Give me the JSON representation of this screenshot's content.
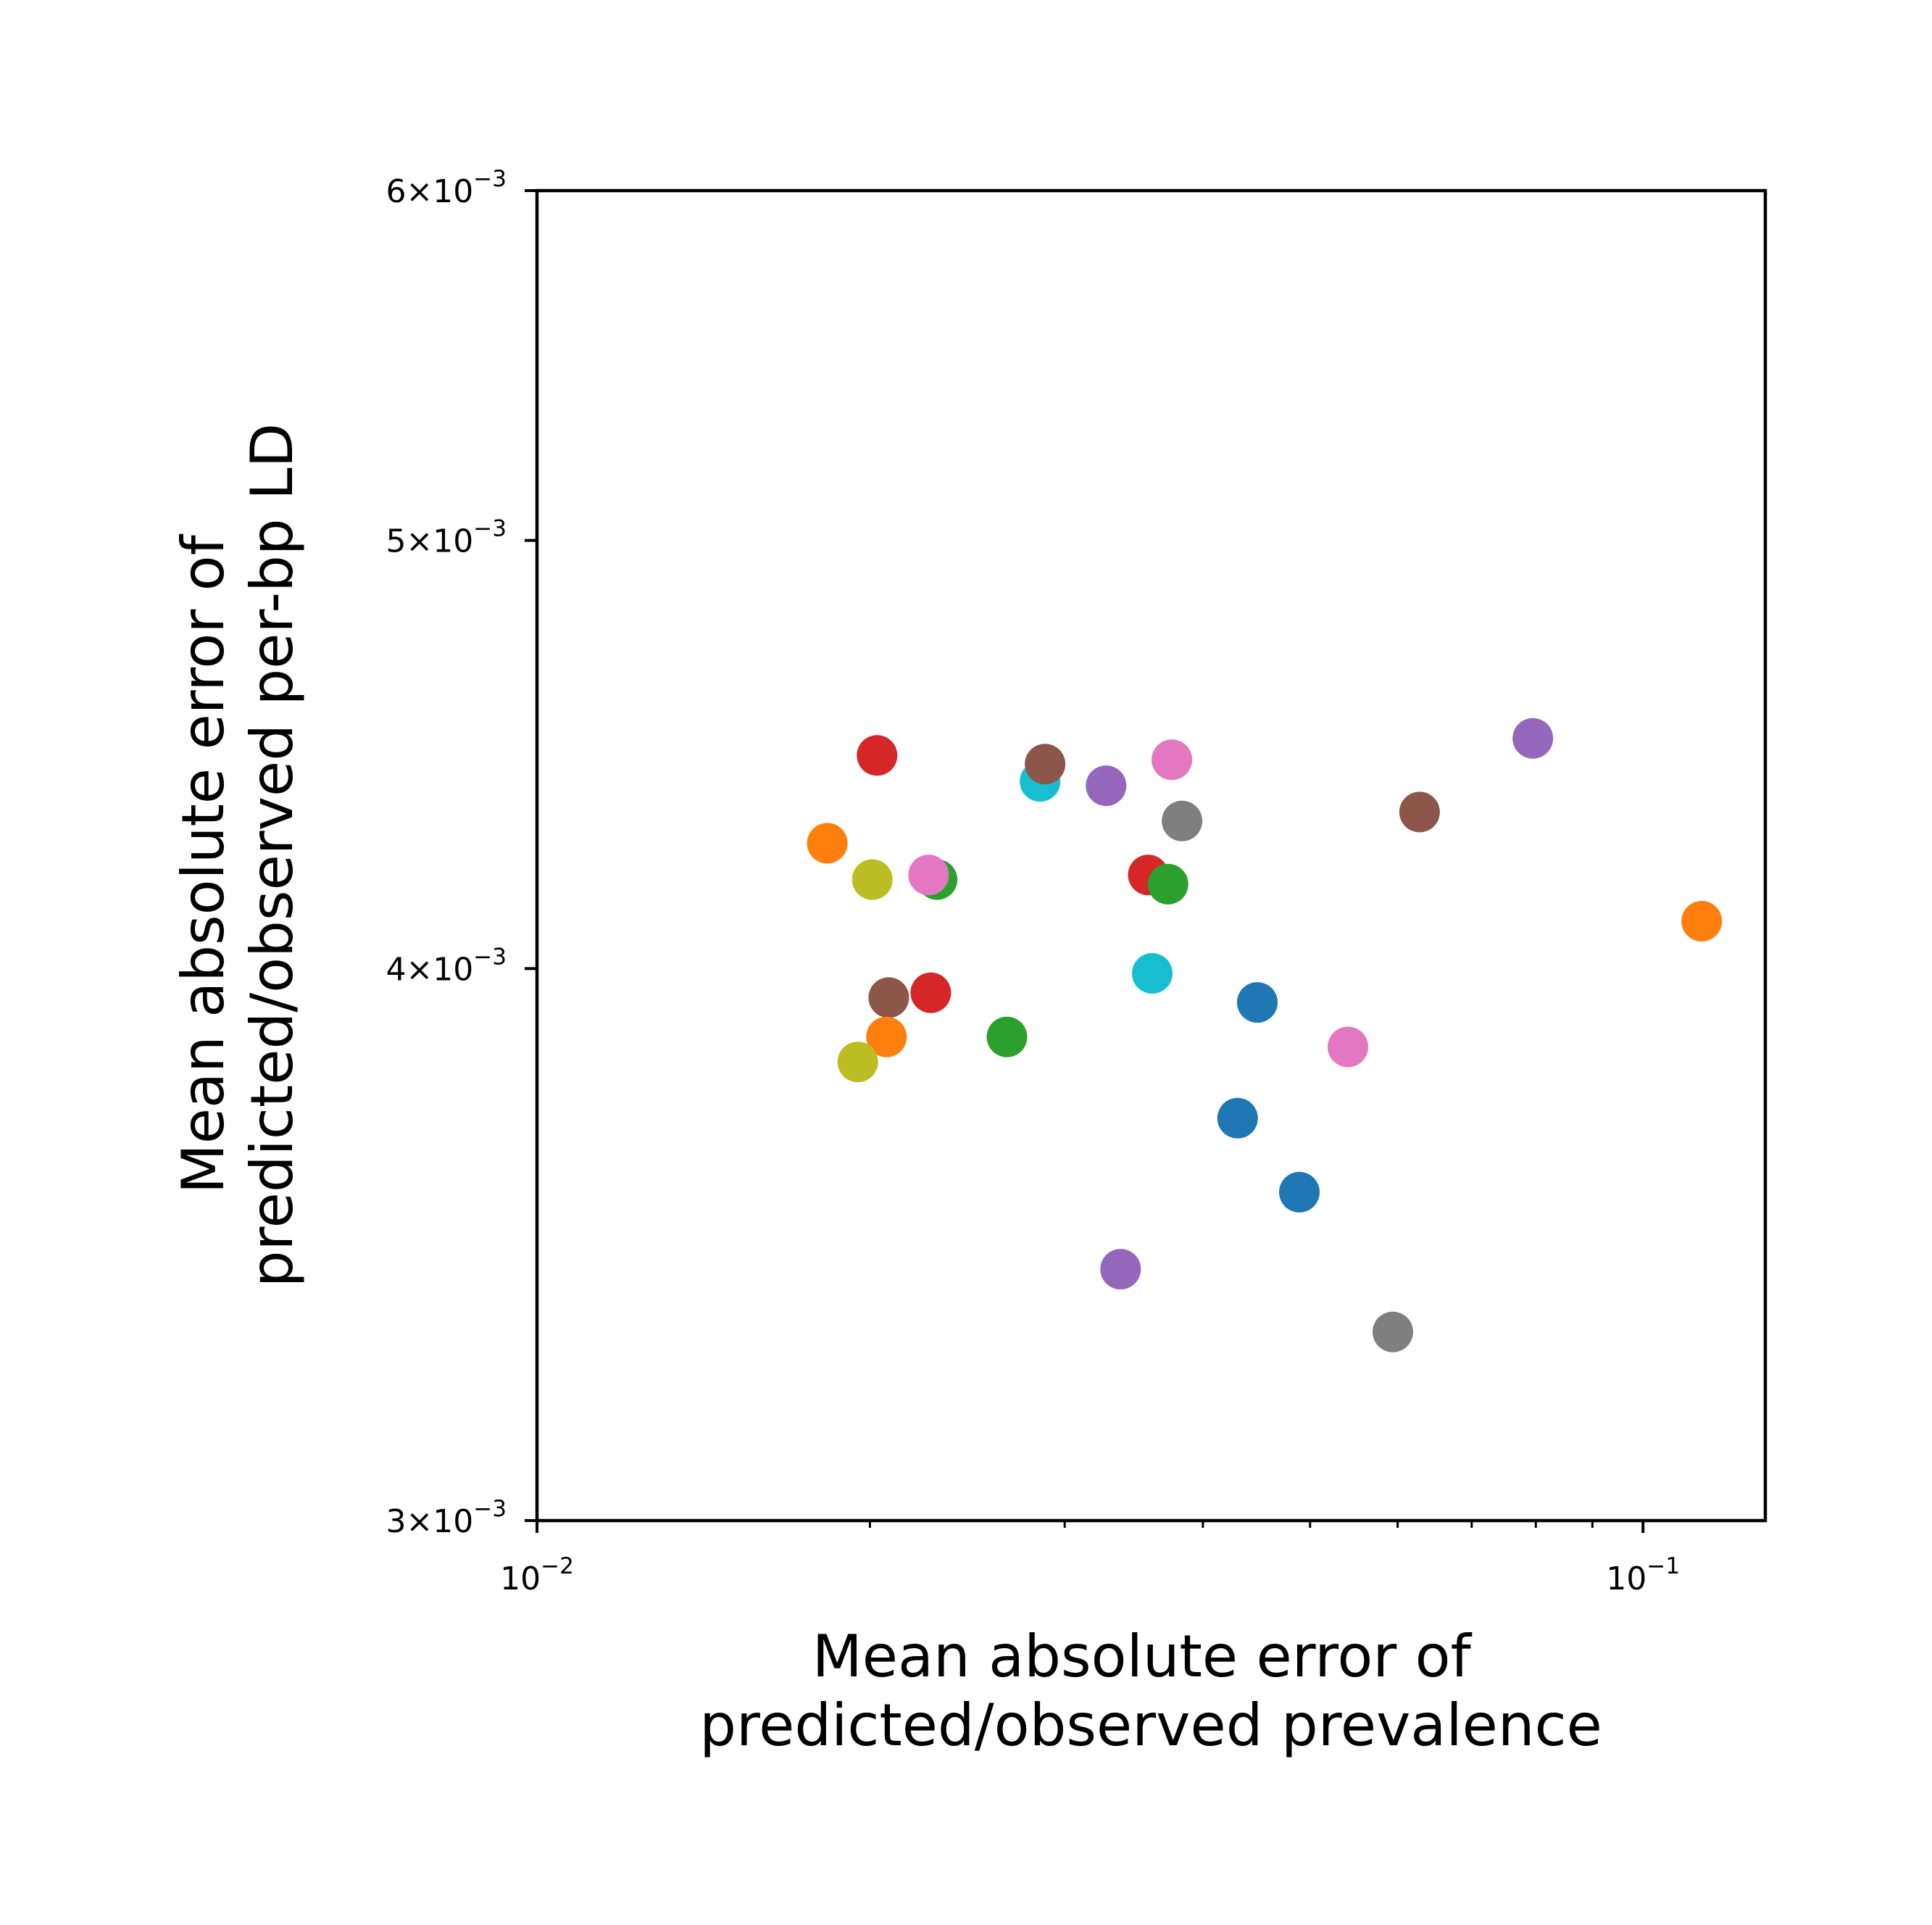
{
  "chart_data": {
    "type": "scatter",
    "title": "",
    "xlabel": [
      "Mean absolute error of",
      "predicted/observed prevalence"
    ],
    "ylabel": [
      "Mean absolute error of",
      "predicted/observed per-bp LD"
    ],
    "xscale": "log",
    "yscale": "log",
    "xlim": [
      0.01,
      0.129
    ],
    "ylim": [
      0.003,
      0.006
    ],
    "xticks": [
      {
        "value": 0.01,
        "base": "10",
        "exp": "−2"
      },
      {
        "value": 0.1,
        "base": "10",
        "exp": "−1"
      }
    ],
    "yticks": [
      {
        "value": 0.006,
        "mant": "6",
        "exp": "−3"
      },
      {
        "value": 0.005,
        "mant": "5",
        "exp": "−3"
      },
      {
        "value": 0.004,
        "mant": "4",
        "exp": "−3"
      },
      {
        "value": 0.003,
        "mant": "3",
        "exp": "−3"
      }
    ],
    "grid": false,
    "legend": "none",
    "points": [
      {
        "x": 0.0203,
        "y": 0.00447,
        "color": "#d62728"
      },
      {
        "x": 0.0285,
        "y": 0.00441,
        "color": "#17becf"
      },
      {
        "x": 0.0288,
        "y": 0.00445,
        "color": "#8c564b"
      },
      {
        "x": 0.0327,
        "y": 0.0044,
        "color": "#9467bd"
      },
      {
        "x": 0.0375,
        "y": 0.00446,
        "color": "#e377c2"
      },
      {
        "x": 0.0383,
        "y": 0.00432,
        "color": "#7f7f7f"
      },
      {
        "x": 0.0183,
        "y": 0.00427,
        "color": "#ff7f0e"
      },
      {
        "x": 0.0201,
        "y": 0.00419,
        "color": "#bcbd22"
      },
      {
        "x": 0.023,
        "y": 0.00419,
        "color": "#2ca02c"
      },
      {
        "x": 0.0226,
        "y": 0.0042,
        "color": "#e377c2"
      },
      {
        "x": 0.0357,
        "y": 0.0042,
        "color": "#d62728"
      },
      {
        "x": 0.0372,
        "y": 0.00418,
        "color": "#2ca02c"
      },
      {
        "x": 0.036,
        "y": 0.00399,
        "color": "#17becf"
      },
      {
        "x": 0.0208,
        "y": 0.00394,
        "color": "#8c564b"
      },
      {
        "x": 0.0227,
        "y": 0.00395,
        "color": "#d62728"
      },
      {
        "x": 0.0207,
        "y": 0.00386,
        "color": "#ff7f0e"
      },
      {
        "x": 0.0195,
        "y": 0.00381,
        "color": "#bcbd22"
      },
      {
        "x": 0.0266,
        "y": 0.00386,
        "color": "#2ca02c"
      },
      {
        "x": 0.0448,
        "y": 0.00393,
        "color": "#1f77b4"
      },
      {
        "x": 0.0541,
        "y": 0.00384,
        "color": "#e377c2"
      },
      {
        "x": 0.043,
        "y": 0.0037,
        "color": "#1f77b4"
      },
      {
        "x": 0.0489,
        "y": 0.00356,
        "color": "#1f77b4"
      },
      {
        "x": 0.0337,
        "y": 0.00342,
        "color": "#9467bd"
      },
      {
        "x": 0.0594,
        "y": 0.00331,
        "color": "#7f7f7f"
      },
      {
        "x": 0.0628,
        "y": 0.00434,
        "color": "#8c564b"
      },
      {
        "x": 0.0795,
        "y": 0.00451,
        "color": "#9467bd"
      },
      {
        "x": 0.113,
        "y": 0.0041,
        "color": "#ff7f0e"
      }
    ]
  }
}
